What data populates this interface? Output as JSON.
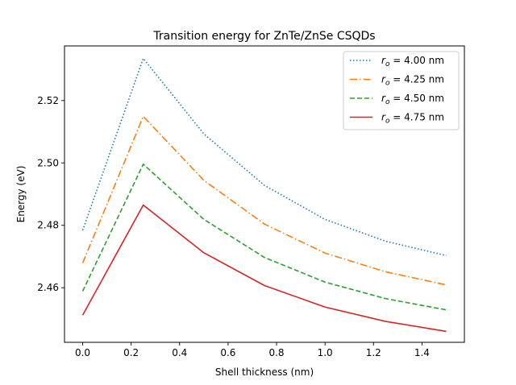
{
  "chart_data": {
    "type": "line",
    "title": "Transition energy for ZnTe/ZnSe CSQDs",
    "xlabel": "Shell thickness (nm)",
    "ylabel": "Energy (eV)",
    "xlim": [
      -0.075,
      1.575
    ],
    "ylim": [
      2.4425,
      2.5375
    ],
    "xticks": [
      0.0,
      0.2,
      0.4,
      0.6,
      0.8,
      1.0,
      1.2,
      1.4
    ],
    "xtick_labels": [
      "0.0",
      "0.2",
      "0.4",
      "0.6",
      "0.8",
      "1.0",
      "1.2",
      "1.4"
    ],
    "yticks": [
      2.46,
      2.48,
      2.5,
      2.52
    ],
    "ytick_labels": [
      "2.46",
      "2.48",
      "2.50",
      "2.52"
    ],
    "grid": false,
    "legend_position": "top-right",
    "x": [
      0.0,
      0.25,
      0.5,
      0.75,
      1.0,
      1.25,
      1.5
    ],
    "series": [
      {
        "name": "4.00 nm",
        "values": [
          2.4784,
          2.5335,
          2.5093,
          2.4928,
          2.4819,
          2.4749,
          2.4703
        ],
        "color": "#1f77b4",
        "style": "dotted"
      },
      {
        "name": "4.25 nm",
        "values": [
          2.4679,
          2.5149,
          2.4944,
          2.4804,
          2.4711,
          2.4651,
          2.4609
        ],
        "color": "#ff7f0e",
        "style": "dashdot"
      },
      {
        "name": "4.50 nm",
        "values": [
          2.4589,
          2.4996,
          2.4819,
          2.4697,
          2.4618,
          2.4565,
          2.4529
        ],
        "color": "#2ca02c",
        "style": "dashed"
      },
      {
        "name": "4.75 nm",
        "values": [
          2.4512,
          2.4865,
          2.4712,
          2.4607,
          2.4538,
          2.4492,
          2.446
        ],
        "color": "#d62728",
        "style": "solid"
      }
    ],
    "legend_symbol": "r",
    "legend_subscript": "o",
    "legend_equals": " = "
  }
}
